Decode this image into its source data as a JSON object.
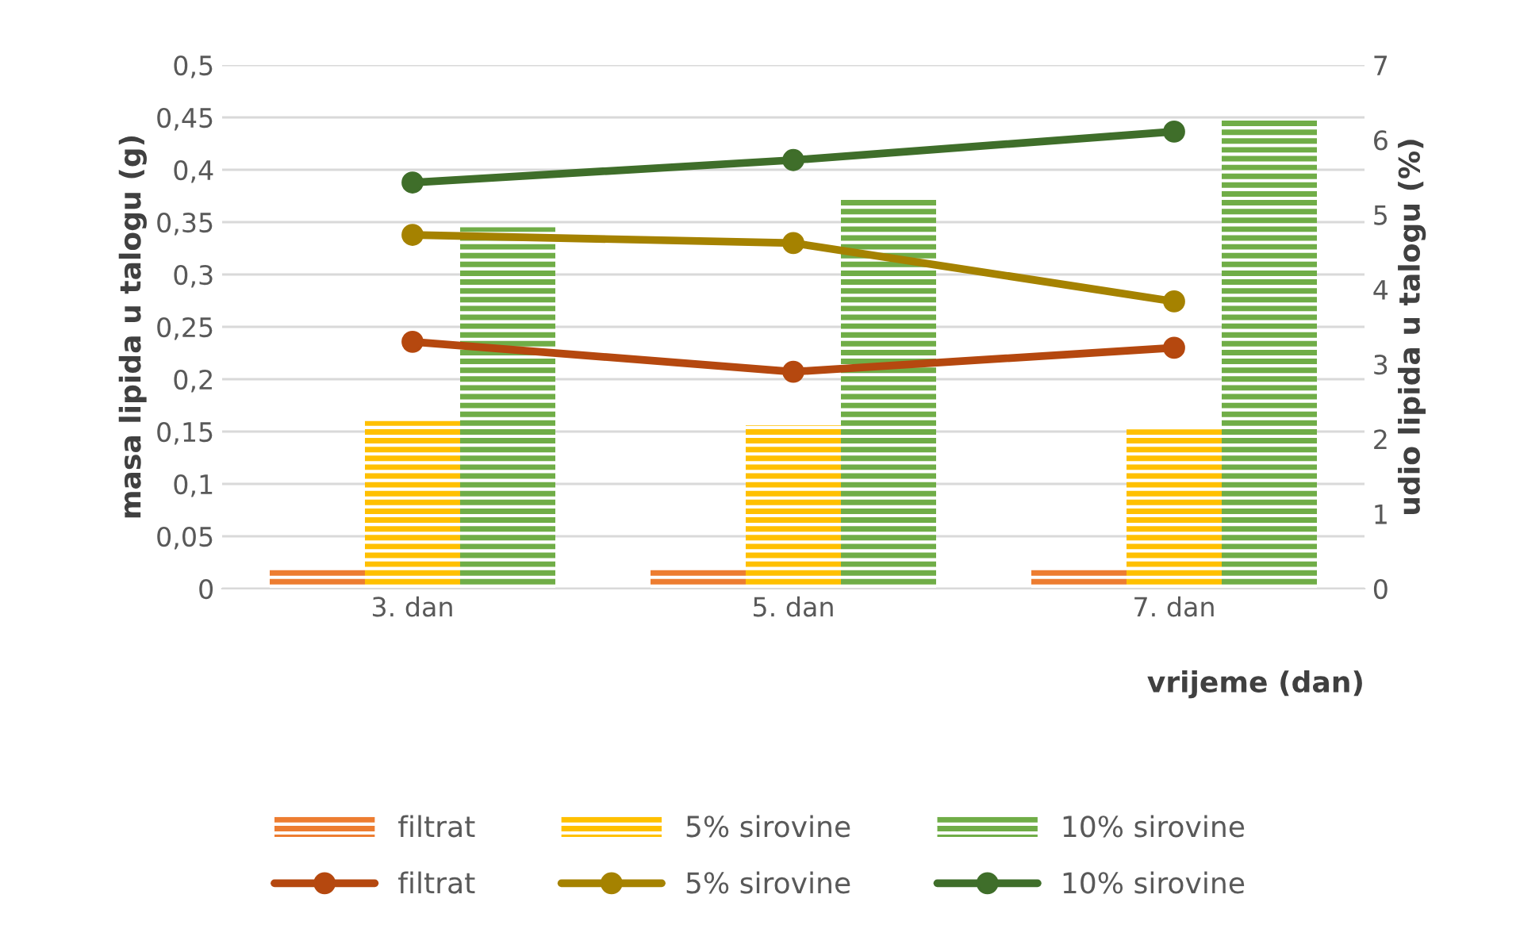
{
  "chart_data": {
    "type": "bar",
    "categories": [
      "3. dan",
      "5. dan",
      "7. dan"
    ],
    "xlabel": "vrijeme (dan)",
    "ylabel": "masa lipida u talogu (g)",
    "y2label": "udio lipida u talogu (%)",
    "series": [
      {
        "name": "filtrat",
        "color": "#ed7d31",
        "values": [
          0.02,
          0.02,
          0.02
        ]
      },
      {
        "name": "5% sirovine",
        "color": "#ffc000",
        "values": [
          0.16,
          0.156,
          0.152
        ]
      },
      {
        "name": "10% sirovine",
        "color": "#70ad47",
        "values": [
          0.345,
          0.373,
          0.447
        ]
      },
      {
        "name": "filtrat",
        "type": "line",
        "axis": "y2",
        "color": "#b5480f",
        "values": [
          3.3,
          2.9,
          3.22
        ]
      },
      {
        "name": "5% sirovine",
        "type": "line",
        "axis": "y2",
        "color": "#a58200",
        "values": [
          4.73,
          4.62,
          3.84
        ]
      },
      {
        "name": "10% sirovine",
        "type": "line",
        "axis": "y2",
        "color": "#3f6e2a",
        "values": [
          5.43,
          5.73,
          6.11
        ]
      }
    ],
    "ylim": [
      0,
      0.5
    ],
    "yticks": [
      0,
      {
        "value": 0.05,
        "label": "0,05"
      },
      {
        "value": 0.1,
        "label": "0,1"
      },
      {
        "value": 0.15,
        "label": "0,15"
      },
      {
        "value": 0.2,
        "label": "0,2"
      },
      {
        "value": 0.25,
        "label": "0,25"
      },
      {
        "value": 0.3,
        "label": "0,3"
      },
      {
        "value": 0.35,
        "label": "0,35"
      },
      {
        "value": 0.4,
        "label": "0,4"
      },
      {
        "value": 0.45,
        "label": "0,45"
      },
      {
        "value": 0.5,
        "label": "0,5"
      }
    ],
    "y2lim": [
      0,
      7
    ],
    "y2ticks": [
      0,
      1,
      2,
      3,
      4,
      5,
      6,
      7
    ],
    "grid": "y",
    "legend": "bottom",
    "marker": "circle"
  }
}
